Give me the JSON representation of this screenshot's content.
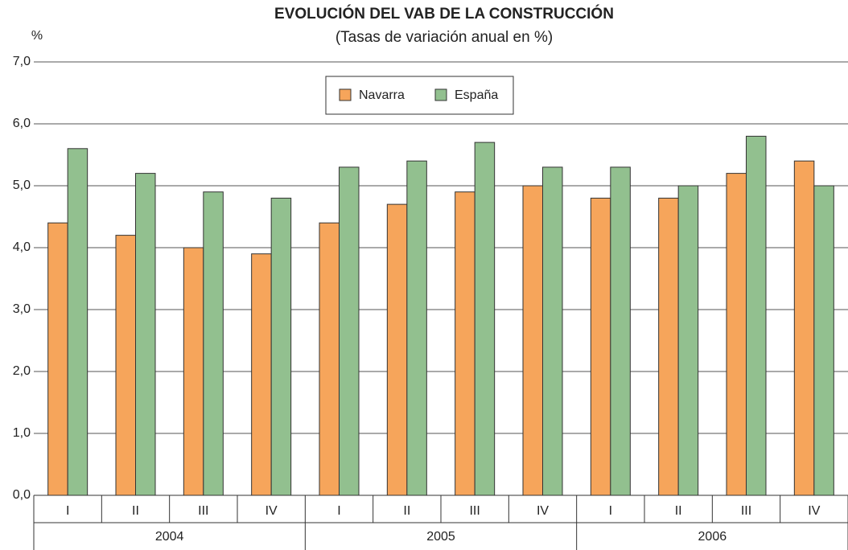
{
  "chart_data": {
    "type": "bar",
    "title": "EVOLUCIÓN DEL VAB DE LA CONSTRUCCIÓN",
    "subtitle": "(Tasas de variación anual en %)",
    "y_label": "%",
    "categories": [
      "I",
      "II",
      "III",
      "IV",
      "I",
      "II",
      "III",
      "IV",
      "I",
      "II",
      "III",
      "IV"
    ],
    "groups": [
      "2004",
      "2005",
      "2006"
    ],
    "series": [
      {
        "name": "Navarra",
        "color": "#f6a55b",
        "values": [
          4.4,
          4.2,
          4.0,
          3.9,
          4.4,
          4.7,
          4.9,
          5.0,
          4.8,
          4.8,
          5.2,
          5.4
        ]
      },
      {
        "name": "España",
        "color": "#92c08f",
        "values": [
          5.6,
          5.2,
          4.9,
          4.8,
          5.3,
          5.4,
          5.7,
          5.3,
          5.3,
          5.0,
          5.8,
          5.0
        ]
      }
    ],
    "ylim": [
      0,
      7
    ],
    "yticks": [
      {
        "value": 0,
        "label": "0,0"
      },
      {
        "value": 1,
        "label": "1,0"
      },
      {
        "value": 2,
        "label": "2,0"
      },
      {
        "value": 3,
        "label": "3,0"
      },
      {
        "value": 4,
        "label": "4,0"
      },
      {
        "value": 5,
        "label": "5,0"
      },
      {
        "value": 6,
        "label": "6,0"
      },
      {
        "value": 7,
        "label": "7,0"
      }
    ],
    "grid": true,
    "legend": "top"
  }
}
